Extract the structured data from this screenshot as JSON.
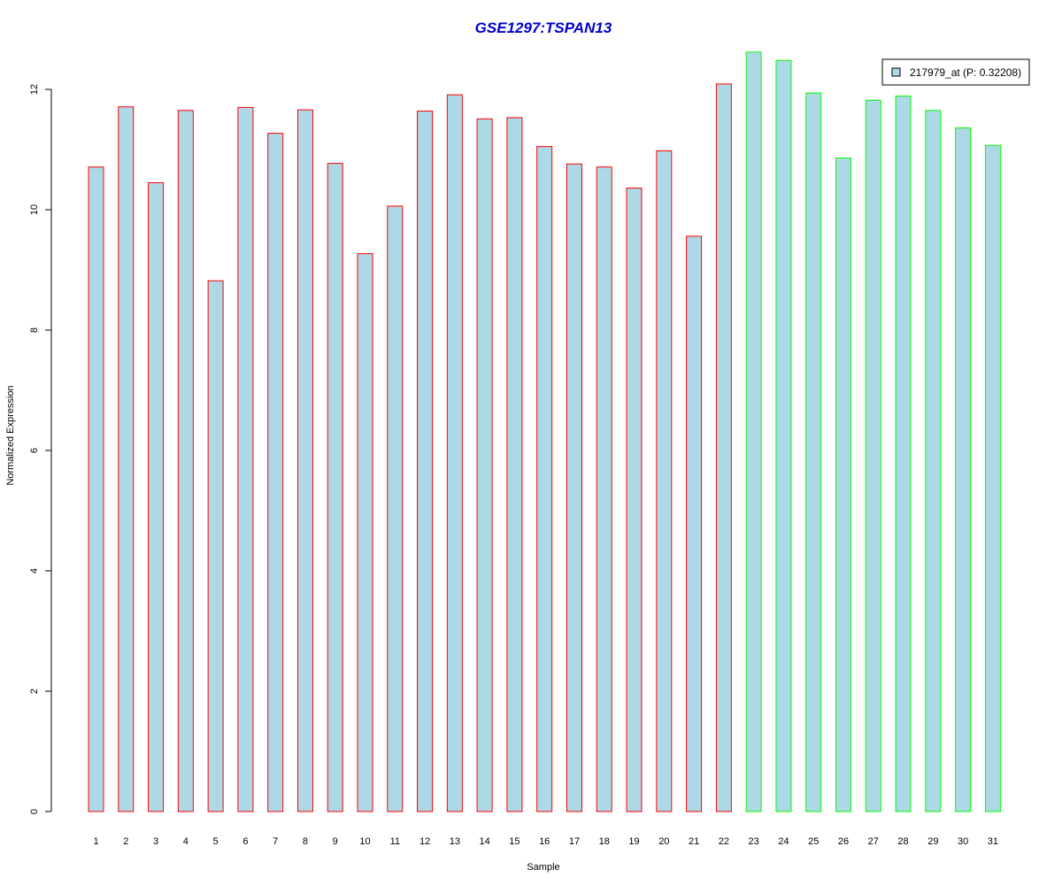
{
  "chart_data": {
    "type": "bar",
    "title": "GSE1297:TSPAN13",
    "xlabel": "Sample",
    "ylabel": "Normalized Expression",
    "ylim": [
      0,
      12
    ],
    "y_ticks": [
      0,
      2,
      4,
      6,
      8,
      10,
      12
    ],
    "grid": false,
    "legend_position": "top-right",
    "categories": [
      "1",
      "2",
      "3",
      "4",
      "5",
      "6",
      "7",
      "8",
      "9",
      "10",
      "11",
      "12",
      "13",
      "14",
      "15",
      "16",
      "17",
      "18",
      "19",
      "20",
      "21",
      "22",
      "23",
      "24",
      "25",
      "26",
      "27",
      "28",
      "29",
      "30",
      "31"
    ],
    "series": [
      {
        "name": "217979_at (P: 0.32208)",
        "values": [
          10.71,
          11.71,
          10.45,
          11.65,
          8.82,
          11.7,
          11.27,
          11.66,
          10.77,
          9.27,
          10.06,
          11.64,
          11.91,
          11.51,
          11.53,
          11.05,
          10.76,
          10.71,
          10.36,
          10.98,
          9.56,
          12.09,
          12.62,
          12.48,
          11.94,
          10.86,
          11.82,
          11.89,
          11.65,
          11.36,
          11.07
        ]
      }
    ],
    "groups": [
      "red",
      "red",
      "red",
      "red",
      "red",
      "red",
      "red",
      "red",
      "red",
      "red",
      "red",
      "red",
      "red",
      "red",
      "red",
      "red",
      "red",
      "red",
      "red",
      "red",
      "red",
      "red",
      "green",
      "green",
      "green",
      "green",
      "green",
      "green",
      "green",
      "green",
      "green"
    ]
  },
  "colors": {
    "bar_fill": "#add8e6",
    "group_red": "#ff0000",
    "group_green": "#00ff00",
    "title": "#0000cc",
    "axis": "#000000"
  }
}
